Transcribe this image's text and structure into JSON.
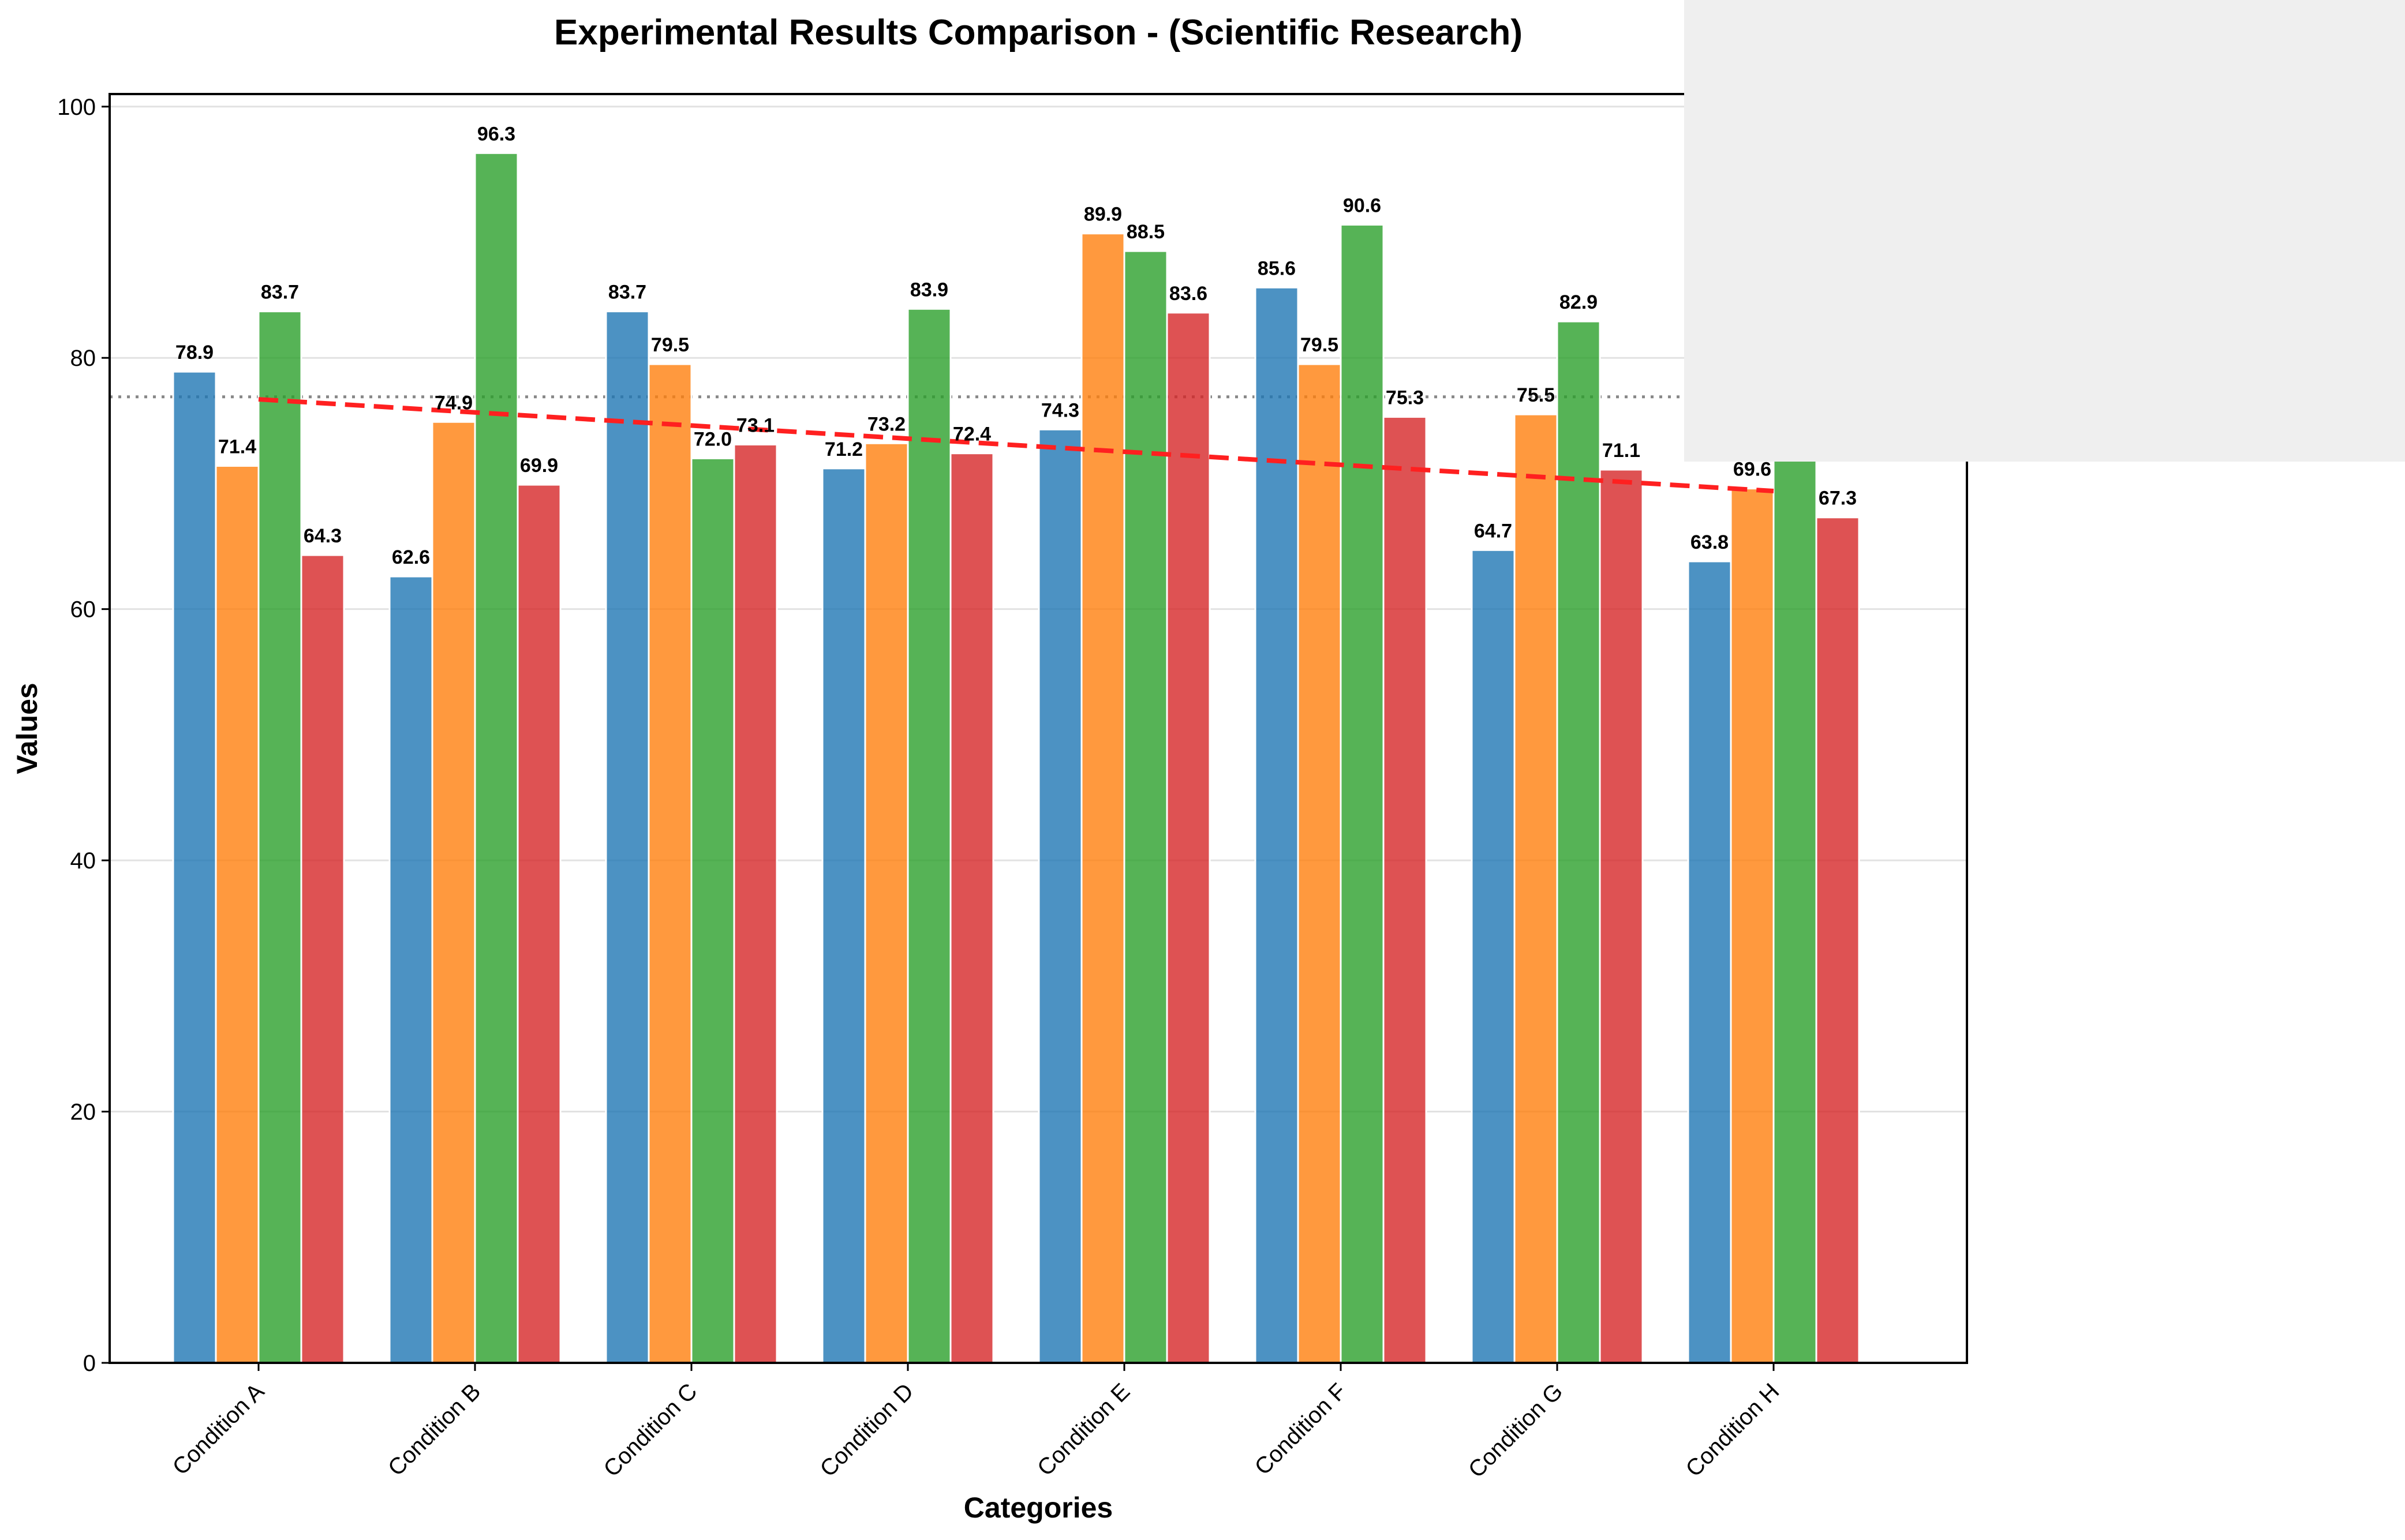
{
  "chart_data": {
    "type": "bar",
    "title": "Experimental Results Comparison - (Scientific Research)",
    "xlabel": "Categories",
    "ylabel": "Values",
    "ylim": [
      0,
      101
    ],
    "yticks": [
      "0",
      "20",
      "40",
      "60",
      "80",
      "100"
    ],
    "categories": [
      "Condition A",
      "Condition B",
      "Condition C",
      "Condition D",
      "Condition E",
      "Condition F",
      "Condition G",
      "Condition H"
    ],
    "series": [
      {
        "color": "#1f77b4",
        "values": [
          78.9,
          62.6,
          83.7,
          71.2,
          74.3,
          85.6,
          64.7,
          63.8
        ]
      },
      {
        "color": "#ff7f0e",
        "values": [
          71.4,
          74.9,
          79.5,
          73.2,
          89.9,
          79.5,
          75.5,
          69.6
        ]
      },
      {
        "color": "#2ca02c",
        "values": [
          83.7,
          96.3,
          72.0,
          83.9,
          88.5,
          90.6,
          82.9,
          71.9
        ]
      },
      {
        "color": "#d62728",
        "values": [
          64.3,
          69.9,
          73.1,
          72.4,
          83.6,
          75.3,
          71.1,
          67.3
        ]
      }
    ],
    "visible_labels": [
      [
        true,
        true,
        true,
        true
      ],
      [
        true,
        true,
        true,
        true
      ],
      [
        true,
        true,
        true,
        true
      ],
      [
        true,
        true,
        true,
        true
      ],
      [
        true,
        true,
        true,
        true
      ],
      [
        true,
        true,
        true,
        true
      ],
      [
        true,
        true,
        true,
        true
      ],
      [
        true,
        true,
        false,
        true
      ]
    ],
    "mean_line": {
      "value": 76.9,
      "style": "dotted",
      "color": "#888888"
    },
    "trend_line": {
      "start": 76.7,
      "end": 69.4,
      "style": "dashed",
      "color": "#ff2020"
    },
    "grid": "horizontal",
    "legend": "none visible",
    "overlay_panel_color": "#efefef"
  }
}
